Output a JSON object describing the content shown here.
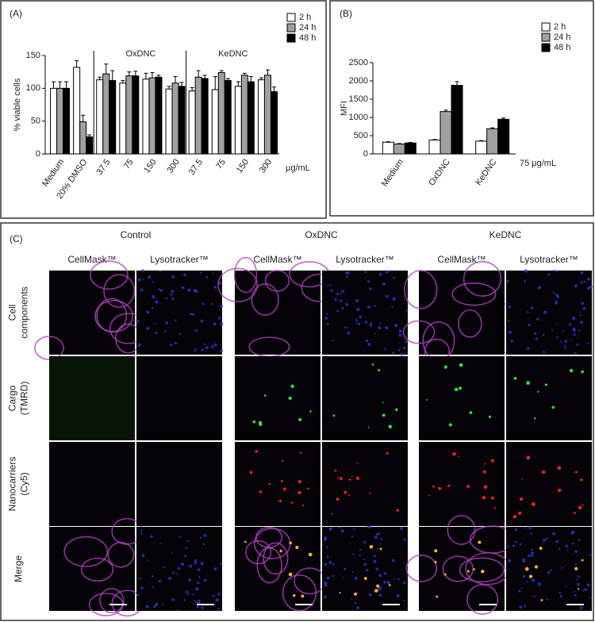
{
  "chart_data": [
    {
      "type": "bar",
      "panel_label": "(A)",
      "y_label": "% viable cells",
      "unit_label": "μg/mL",
      "group_labels": [
        "OxDNC",
        "KeDNC"
      ],
      "categories": [
        "Medium",
        "20% DMSO",
        "37.5",
        "75",
        "150",
        "300",
        "37.5",
        "75",
        "150",
        "300"
      ],
      "series": [
        {
          "name": "2 h",
          "color": "#ffffff",
          "values": [
            100,
            132,
            113,
            108,
            114,
            99,
            96,
            98,
            103,
            113
          ],
          "errors": [
            10,
            10,
            4,
            4,
            9,
            4,
            5,
            20,
            7,
            3
          ]
        },
        {
          "name": "24 h",
          "color": "#a0a0a0",
          "values": [
            100,
            49,
            122,
            119,
            116,
            108,
            117,
            124,
            120,
            120
          ],
          "errors": [
            10,
            10,
            15,
            6,
            8,
            10,
            10,
            3,
            3,
            8
          ]
        },
        {
          "name": "48 h",
          "color": "#000000",
          "values": [
            100,
            26,
            112,
            119,
            117,
            103,
            115,
            112,
            110,
            95
          ],
          "errors": [
            10,
            3,
            15,
            7,
            3,
            6,
            5,
            3,
            8,
            7
          ]
        }
      ],
      "ylim": [
        0,
        150
      ],
      "yticks": [
        0,
        50,
        100,
        150
      ],
      "grid": false,
      "legend": "top-right"
    },
    {
      "type": "bar",
      "panel_label": "(B)",
      "y_label": "MFI",
      "note": "75 μg/mL",
      "categories": [
        "Medium",
        "OxDNC",
        "KeDNC"
      ],
      "series": [
        {
          "name": "2 h",
          "color": "#ffffff",
          "values": [
            320,
            380,
            350
          ],
          "errors": [
            15,
            15,
            15
          ]
        },
        {
          "name": "24 h",
          "color": "#a0a0a0",
          "values": [
            270,
            1160,
            690
          ],
          "errors": [
            15,
            40,
            25
          ]
        },
        {
          "name": "48 h",
          "color": "#000000",
          "values": [
            300,
            1880,
            950
          ],
          "errors": [
            15,
            100,
            35
          ]
        }
      ],
      "ylim": [
        0,
        2500
      ],
      "yticks": [
        0,
        500,
        1000,
        1500,
        2000,
        2500
      ],
      "grid": false,
      "legend": "top-right"
    }
  ],
  "figure_c": {
    "panel_label": "(C)",
    "conditions": [
      {
        "name": "Control",
        "channels": [
          "CellMask™",
          "Lysotracker™"
        ]
      },
      {
        "name": "OxDNC",
        "channels": [
          "CellMask™",
          "Lysotracker™"
        ]
      },
      {
        "name": "KeDNC",
        "channels": [
          "CellMask™",
          "Lysotracker™"
        ]
      }
    ],
    "rows": [
      [
        "Cell",
        "components"
      ],
      [
        "Cargo",
        "(TMRD)"
      ],
      [
        "Nanocarriers",
        "(Cy5)"
      ],
      [
        "Merge"
      ]
    ]
  }
}
